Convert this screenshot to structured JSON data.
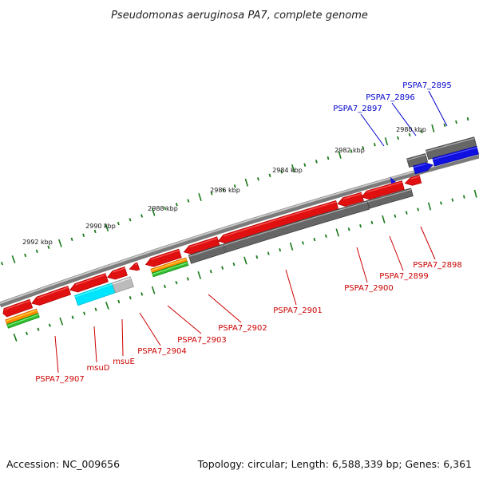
{
  "title": "Pseudomonas aeruginosa PA7, complete genome",
  "footer": {
    "accession": "Accession: NC_009656",
    "topology": "Topology: circular; Length: 6,588,339 bp; Genes: 6,361"
  },
  "scale": {
    "unit": "kbp",
    "ticks": [
      "2980 kbp",
      "2982 kbp",
      "2984 kbp",
      "2986 kbp",
      "2988 kbp",
      "2990 kbp",
      "2992 kbp"
    ]
  },
  "gene_labels": {
    "PSPA7_2895": "PSPA7_2895",
    "PSPA7_2896": "PSPA7_2896",
    "PSPA7_2897": "PSPA7_2897",
    "PSPA7_2898": "PSPA7_2898",
    "PSPA7_2899": "PSPA7_2899",
    "PSPA7_2900": "PSPA7_2900",
    "PSPA7_2901": "PSPA7_2901",
    "PSPA7_2902": "PSPA7_2902",
    "PSPA7_2903": "PSPA7_2903",
    "PSPA7_2904": "PSPA7_2904",
    "msuE": "msuE",
    "msuD": "msuD",
    "PSPA7_2907": "PSPA7_2907"
  },
  "colors": {
    "backbone": "#8c8c8c",
    "minor_tick": "#1a7a1a",
    "major_tick": "#1a7a1a",
    "reverse_cds": "#e01010",
    "forward_cds": "#1010e0",
    "gene_track": "#666666",
    "label_reverse": "#cc0000",
    "label_forward": "#0000cc",
    "msuD_feature": "#00e5ff",
    "msuE_feature": "#bbbbbb",
    "orange_feature": "#ff8c00",
    "green_feature": "#33bb33"
  }
}
